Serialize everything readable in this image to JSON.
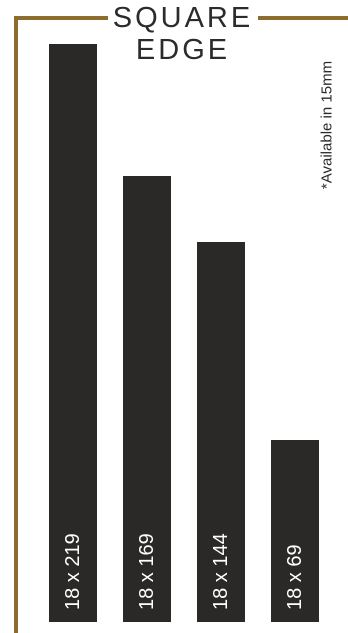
{
  "title": {
    "line1": "SQUARE",
    "line2": "EDGE"
  },
  "note": "*Available in 15mm",
  "colors": {
    "frame": "#8c6d2e",
    "bar": "#2a2928",
    "label": "#ffffff",
    "text": "#2b2b2b"
  },
  "chart_data": {
    "type": "bar",
    "categories": [
      "18 x 219",
      "18 x 169",
      "18 x 144",
      "18 x 69"
    ],
    "values": [
      219,
      169,
      144,
      69
    ]
  }
}
